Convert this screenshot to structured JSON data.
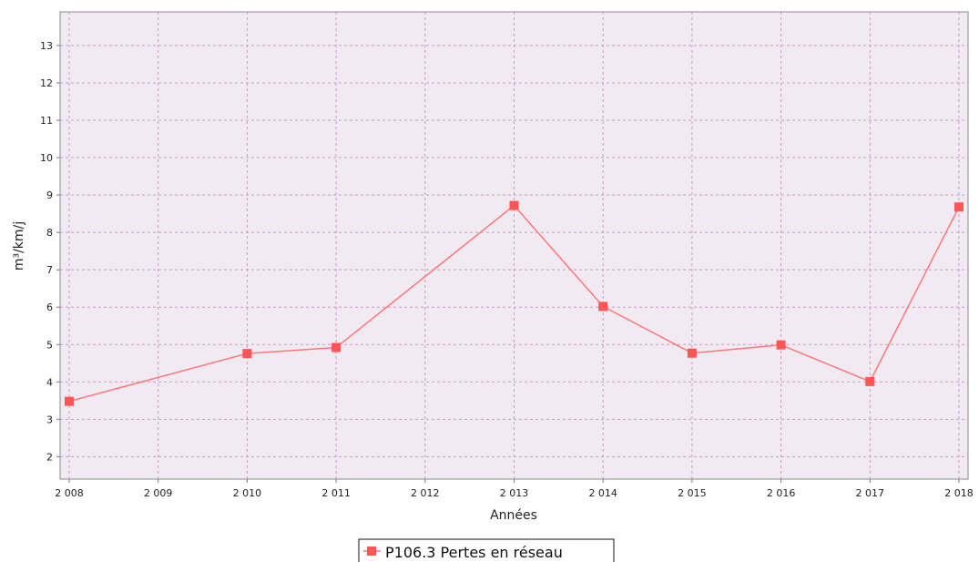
{
  "chart_data": {
    "type": "line",
    "title": "",
    "xlabel": "Années",
    "ylabel": "m³/km/j",
    "x": [
      2008,
      2010,
      2011,
      2013,
      2014,
      2015,
      2016,
      2017,
      2018
    ],
    "xticks": [
      "2 008",
      "2 009",
      "2 010",
      "2 011",
      "2 012",
      "2 013",
      "2 014",
      "2 015",
      "2 016",
      "2 017",
      "2 018"
    ],
    "xlim": [
      2008,
      2018
    ],
    "yticks": [
      "2",
      "3",
      "4",
      "5",
      "6",
      "7",
      "8",
      "9",
      "10",
      "11",
      "12",
      "13"
    ],
    "ylim": [
      1.4,
      13.9
    ],
    "grid": true,
    "legend_position": "bottom-center",
    "series": [
      {
        "name": "P106.3 Pertes en réseau",
        "color": "#ff5555",
        "marker": "square",
        "values": [
          3.48,
          4.76,
          4.92,
          8.72,
          6.02,
          4.77,
          4.99,
          4.01,
          8.68
        ]
      }
    ],
    "colors": {
      "plot_background": "#f2eaf2",
      "grid": "#c89ac8",
      "axis": "#777777",
      "line": "#ff7777",
      "marker": "#ff5555"
    }
  }
}
